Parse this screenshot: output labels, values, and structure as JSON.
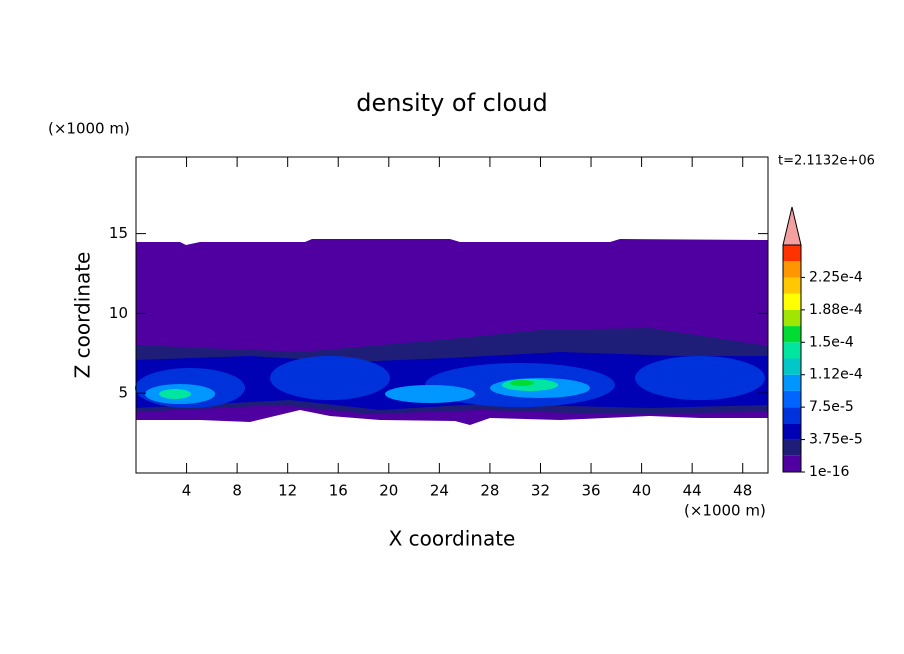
{
  "chart_data": {
    "type": "contour",
    "title": "density of cloud",
    "xlabel": "X coordinate",
    "ylabel": "Z coordinate",
    "xunit": "(×1000 m)",
    "yunit": "(×1000 m)",
    "annotation": "t=2.1132e+06",
    "xlim": [
      0,
      50
    ],
    "xticks": [
      4,
      8,
      12,
      16,
      20,
      24,
      28,
      32,
      36,
      40,
      44,
      48
    ],
    "ylim": [
      0,
      19.8
    ],
    "yticks": [
      5,
      10,
      15
    ],
    "colorbar": {
      "levels": [
        1e-16,
        1.875e-05,
        3.75e-05,
        5.625e-05,
        7.5e-05,
        9.375e-05,
        0.0001125,
        0.00013125,
        0.00015,
        0.00016875,
        0.0001875,
        0.00020625,
        0.000225,
        0.00024375,
        0.0002625
      ],
      "colors": [
        "#5000a0",
        "#1e1e78",
        "#0000b4",
        "#0032dc",
        "#0064ff",
        "#0096ff",
        "#00c8c8",
        "#00e6a0",
        "#00dc32",
        "#a0e600",
        "#ffff00",
        "#ffc800",
        "#ff9600",
        "#ff3200"
      ],
      "extend_color": "#f4a0a0",
      "ticks": [
        {
          "value": 1e-16,
          "label": "1e-16"
        },
        {
          "value": 3.75e-05,
          "label": "3.75e-5"
        },
        {
          "value": 7.5e-05,
          "label": "7.5e-5"
        },
        {
          "value": 0.0001125,
          "label": "1.12e-4"
        },
        {
          "value": 0.00015,
          "label": "1.5e-4"
        },
        {
          "value": 0.0001875,
          "label": "1.88e-4"
        },
        {
          "value": 0.000225,
          "label": "2.25e-4"
        }
      ]
    }
  }
}
